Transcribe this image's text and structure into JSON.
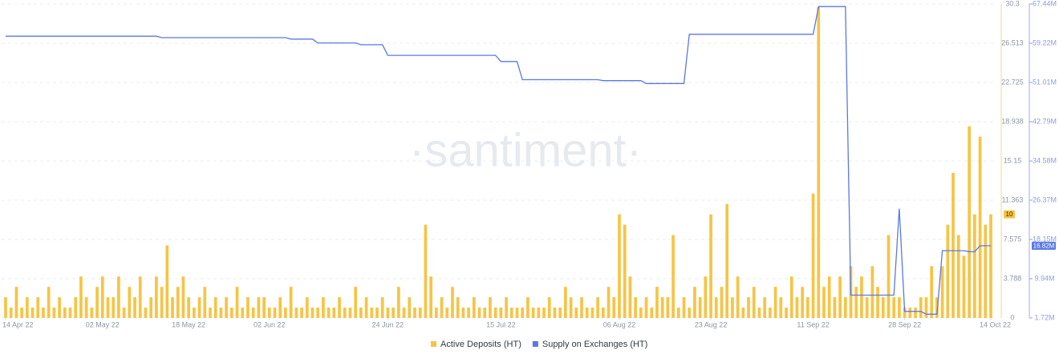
{
  "chart_data": {
    "type": "bar-line",
    "watermark": "·santiment·",
    "x": [
      "2022-04-14",
      "2022-04-15",
      "2022-04-16",
      "2022-04-17",
      "2022-04-18",
      "2022-04-19",
      "2022-04-20",
      "2022-04-21",
      "2022-04-22",
      "2022-04-23",
      "2022-04-24",
      "2022-04-25",
      "2022-04-26",
      "2022-04-27",
      "2022-04-28",
      "2022-04-29",
      "2022-04-30",
      "2022-05-01",
      "2022-05-02",
      "2022-05-03",
      "2022-05-04",
      "2022-05-05",
      "2022-05-06",
      "2022-05-07",
      "2022-05-08",
      "2022-05-09",
      "2022-05-10",
      "2022-05-11",
      "2022-05-12",
      "2022-05-13",
      "2022-05-14",
      "2022-05-15",
      "2022-05-16",
      "2022-05-17",
      "2022-05-18",
      "2022-05-19",
      "2022-05-20",
      "2022-05-21",
      "2022-05-22",
      "2022-05-23",
      "2022-05-24",
      "2022-05-25",
      "2022-05-26",
      "2022-05-27",
      "2022-05-28",
      "2022-05-29",
      "2022-05-30",
      "2022-05-31",
      "2022-06-01",
      "2022-06-02",
      "2022-06-03",
      "2022-06-04",
      "2022-06-05",
      "2022-06-06",
      "2022-06-07",
      "2022-06-08",
      "2022-06-09",
      "2022-06-10",
      "2022-06-11",
      "2022-06-12",
      "2022-06-13",
      "2022-06-14",
      "2022-06-15",
      "2022-06-16",
      "2022-06-17",
      "2022-06-18",
      "2022-06-19",
      "2022-06-20",
      "2022-06-21",
      "2022-06-22",
      "2022-06-23",
      "2022-06-24",
      "2022-06-25",
      "2022-06-26",
      "2022-06-27",
      "2022-06-28",
      "2022-06-29",
      "2022-06-30",
      "2022-07-01",
      "2022-07-02",
      "2022-07-03",
      "2022-07-04",
      "2022-07-05",
      "2022-07-06",
      "2022-07-07",
      "2022-07-08",
      "2022-07-09",
      "2022-07-10",
      "2022-07-11",
      "2022-07-12",
      "2022-07-13",
      "2022-07-14",
      "2022-07-15",
      "2022-07-16",
      "2022-07-17",
      "2022-07-18",
      "2022-07-19",
      "2022-07-20",
      "2022-07-21",
      "2022-07-22",
      "2022-07-23",
      "2022-07-24",
      "2022-07-25",
      "2022-07-26",
      "2022-07-27",
      "2022-07-28",
      "2022-07-29",
      "2022-07-30",
      "2022-07-31",
      "2022-08-01",
      "2022-08-02",
      "2022-08-03",
      "2022-08-04",
      "2022-08-05",
      "2022-08-06",
      "2022-08-07",
      "2022-08-08",
      "2022-08-09",
      "2022-08-10",
      "2022-08-11",
      "2022-08-12",
      "2022-08-13",
      "2022-08-14",
      "2022-08-15",
      "2022-08-16",
      "2022-08-17",
      "2022-08-18",
      "2022-08-19",
      "2022-08-20",
      "2022-08-21",
      "2022-08-22",
      "2022-08-23",
      "2022-08-24",
      "2022-08-25",
      "2022-08-26",
      "2022-08-27",
      "2022-08-28",
      "2022-08-29",
      "2022-08-30",
      "2022-08-31",
      "2022-09-01",
      "2022-09-02",
      "2022-09-03",
      "2022-09-04",
      "2022-09-05",
      "2022-09-06",
      "2022-09-07",
      "2022-09-08",
      "2022-09-09",
      "2022-09-10",
      "2022-09-11",
      "2022-09-12",
      "2022-09-13",
      "2022-09-14",
      "2022-09-15",
      "2022-09-16",
      "2022-09-17",
      "2022-09-18",
      "2022-09-19",
      "2022-09-20",
      "2022-09-21",
      "2022-09-22",
      "2022-09-23",
      "2022-09-24",
      "2022-09-25",
      "2022-09-26",
      "2022-09-27",
      "2022-09-28",
      "2022-09-29",
      "2022-09-30",
      "2022-10-01",
      "2022-10-02",
      "2022-10-03",
      "2022-10-04",
      "2022-10-05",
      "2022-10-06",
      "2022-10-07",
      "2022-10-08",
      "2022-10-09",
      "2022-10-10",
      "2022-10-11",
      "2022-10-12",
      "2022-10-13",
      "2022-10-14"
    ],
    "xticks": [
      {
        "value": "2022-04-14",
        "label": "14 Apr 22"
      },
      {
        "value": "2022-05-02",
        "label": "02 May 22"
      },
      {
        "value": "2022-05-18",
        "label": "18 May 22"
      },
      {
        "value": "2022-06-02",
        "label": "02 Jun 22"
      },
      {
        "value": "2022-06-24",
        "label": "24 Jun 22"
      },
      {
        "value": "2022-07-15",
        "label": "15 Jul 22"
      },
      {
        "value": "2022-08-06",
        "label": "06 Aug 22"
      },
      {
        "value": "2022-08-23",
        "label": "23 Aug 22"
      },
      {
        "value": "2022-09-11",
        "label": "11 Sep 22"
      },
      {
        "value": "2022-09-28",
        "label": "28 Sep 22"
      },
      {
        "value": "2022-10-14",
        "label": "14 Oct 22"
      }
    ],
    "ylim": [
      0,
      30.3
    ],
    "yticks": [
      0,
      3.788,
      7.575,
      11.363,
      15.15,
      18.938,
      22.725,
      26.513,
      30.3
    ],
    "y2lim": [
      1720000,
      67440000
    ],
    "y2ticks": [
      {
        "value": 1720000,
        "label": "1.72M"
      },
      {
        "value": 9940000,
        "label": "9.94M"
      },
      {
        "value": 18150000,
        "label": "18.15M"
      },
      {
        "value": 26370000,
        "label": "26.37M"
      },
      {
        "value": 34580000,
        "label": "34.58M"
      },
      {
        "value": 42790000,
        "label": "42.79M"
      },
      {
        "value": 51010000,
        "label": "51.01M"
      },
      {
        "value": 59220000,
        "label": "59.22M"
      },
      {
        "value": 67440000,
        "label": "67.44M"
      }
    ],
    "grid": true,
    "series": [
      {
        "name": "Active Deposits (HT)",
        "kind": "bar",
        "color": "#f6c445",
        "last_label": 10,
        "values": [
          2,
          1,
          3,
          1,
          2,
          1,
          2,
          1,
          3,
          1,
          2,
          1,
          1,
          2,
          4,
          2,
          1,
          3,
          4,
          2,
          2,
          4,
          1,
          3,
          2,
          4,
          1,
          2,
          4,
          3,
          7,
          2,
          3,
          4,
          2,
          1,
          2,
          3,
          1,
          2,
          1,
          2,
          1,
          3,
          1,
          2,
          1,
          2,
          2,
          1,
          1,
          2,
          1,
          3,
          1,
          1,
          2,
          1,
          1,
          2,
          1,
          1,
          2,
          1,
          1,
          3,
          1,
          2,
          1,
          1,
          2,
          1,
          1,
          3,
          1,
          2,
          1,
          1,
          9,
          4,
          1,
          2,
          1,
          3,
          2,
          1,
          1,
          2,
          1,
          1,
          2,
          1,
          1,
          2,
          1,
          1,
          1,
          2,
          1,
          1,
          1,
          2,
          1,
          1,
          3,
          2,
          1,
          2,
          1,
          1,
          2,
          1,
          3,
          2,
          10,
          9,
          4,
          2,
          1,
          2,
          1,
          3,
          2,
          2,
          8,
          1,
          2,
          1,
          3,
          2,
          4,
          10,
          2,
          3,
          11,
          2,
          4,
          1,
          2,
          3,
          1,
          2,
          1,
          3,
          2,
          1,
          4,
          2,
          3,
          2,
          12,
          30,
          3,
          4,
          2,
          4,
          2,
          5,
          3,
          4,
          2,
          5,
          3,
          2,
          8,
          2,
          2,
          1,
          1,
          1,
          2,
          2,
          5,
          2,
          5,
          9,
          14,
          8,
          6,
          18.5,
          10,
          17.5,
          9,
          10
        ]
      },
      {
        "name": "Supply on Exchanges (HT)",
        "kind": "line",
        "axis": "y2",
        "color": "#5b78e6",
        "last_label": {
          "value": 16820000,
          "label": "16.82M"
        },
        "values": [
          60700000,
          60700000,
          60700000,
          60700000,
          60700000,
          60700000,
          60700000,
          60700000,
          60700000,
          60700000,
          60700000,
          60700000,
          60700000,
          60700000,
          60700000,
          60700000,
          60700000,
          60700000,
          60700000,
          60700000,
          60700000,
          60700000,
          60700000,
          60700000,
          60700000,
          60700000,
          60700000,
          60700000,
          60700000,
          60400000,
          60400000,
          60400000,
          60400000,
          60400000,
          60400000,
          60400000,
          60400000,
          60400000,
          60400000,
          60400000,
          60400000,
          60400000,
          60400000,
          60400000,
          60400000,
          60400000,
          60400000,
          60400000,
          60400000,
          60400000,
          60400000,
          60400000,
          60400000,
          60100000,
          60100000,
          60100000,
          60100000,
          60100000,
          59300000,
          59300000,
          59300000,
          59300000,
          59300000,
          59300000,
          59300000,
          59300000,
          58900000,
          58900000,
          58900000,
          58900000,
          58900000,
          56700000,
          56700000,
          56700000,
          56700000,
          56700000,
          56700000,
          56700000,
          56700000,
          56700000,
          56700000,
          56700000,
          56700000,
          56700000,
          56700000,
          56700000,
          56700000,
          56700000,
          56700000,
          56700000,
          56700000,
          56700000,
          55400000,
          55400000,
          55400000,
          55400000,
          51600000,
          51600000,
          51600000,
          51600000,
          51600000,
          51600000,
          51600000,
          51600000,
          51600000,
          51600000,
          51600000,
          51600000,
          51600000,
          51600000,
          51600000,
          51400000,
          51400000,
          51400000,
          51400000,
          51400000,
          51400000,
          51400000,
          51400000,
          50800000,
          50800000,
          50800000,
          50800000,
          50800000,
          50800000,
          50800000,
          50800000,
          61100000,
          61100000,
          61100000,
          61100000,
          61100000,
          61100000,
          61100000,
          61100000,
          61100000,
          61100000,
          61100000,
          61100000,
          61100000,
          61100000,
          61100000,
          61100000,
          61100000,
          61100000,
          61100000,
          61100000,
          61100000,
          61100000,
          61100000,
          61100000,
          66900000,
          66900000,
          66900000,
          66900000,
          66900000,
          66900000,
          6500000,
          6500000,
          6500000,
          6500000,
          6500000,
          6500000,
          6500000,
          6500000,
          6500000,
          24600000,
          3100000,
          3100000,
          3100000,
          3100000,
          2500000,
          2500000,
          2500000,
          15800000,
          15800000,
          15800000,
          15800000,
          15800000,
          15600000,
          15600000,
          16820000,
          16820000,
          16820000
        ]
      }
    ]
  }
}
